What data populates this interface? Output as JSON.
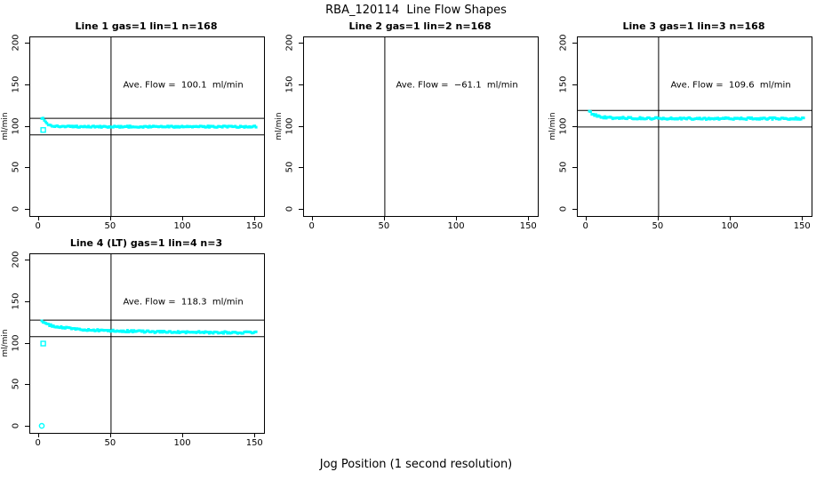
{
  "page": {
    "title": "RBA_120114  Line Flow Shapes",
    "xlabel": "Jog Position (1 second resolution)"
  },
  "colors": {
    "marker": "#00ffff",
    "axis": "#000000",
    "background": "#ffffff"
  },
  "axes": {
    "ylabel": "ml/min",
    "x_ticks": [
      0,
      50,
      100,
      150
    ],
    "y_ticks": [
      0,
      50,
      100,
      150,
      200
    ],
    "xlim": [
      -6,
      156
    ],
    "ylim": [
      -8,
      208
    ],
    "grid": false
  },
  "chart_data": [
    {
      "type": "scatter",
      "title": "Line 1 gas=1 lin=1 n=168",
      "n_points": 168,
      "annotation": "Ave. Flow =  100.1  ml/min",
      "ave_flow_ml_min": 100.1,
      "annotation_xy": [
        100,
        150
      ],
      "vline_x": 50,
      "ref_lines_y": [
        110.1,
        90.1
      ],
      "band": [
        [
          2,
          110
        ],
        [
          3,
          110
        ],
        [
          4,
          108
        ],
        [
          5,
          105
        ],
        [
          7,
          102
        ],
        [
          10,
          100.8
        ],
        [
          15,
          100.3
        ],
        [
          25,
          100
        ],
        [
          50,
          100
        ],
        [
          100,
          100
        ],
        [
          151,
          100
        ]
      ],
      "jitter": 0.9,
      "outliers": [
        {
          "x": 3,
          "y": 96,
          "marker": "square"
        }
      ]
    },
    {
      "type": "scatter",
      "title": "Line 2 gas=1 lin=2 n=168",
      "n_points": 168,
      "annotation": "Ave. Flow =  −61.1  ml/min",
      "ave_flow_ml_min": -61.1,
      "annotation_xy": [
        100,
        150
      ],
      "vline_x": 50,
      "ref_lines_y": [],
      "band": [],
      "jitter": 0,
      "outliers": []
    },
    {
      "type": "scatter",
      "title": "Line 3 gas=1 lin=3 n=168",
      "n_points": 168,
      "annotation": "Ave. Flow =  109.6  ml/min",
      "ave_flow_ml_min": 109.6,
      "annotation_xy": [
        100,
        150
      ],
      "vline_x": 50,
      "ref_lines_y": [
        119.6,
        99.6
      ],
      "band": [
        [
          2,
          118
        ],
        [
          3,
          117
        ],
        [
          5,
          114.5
        ],
        [
          8,
          112.5
        ],
        [
          12,
          111.3
        ],
        [
          20,
          110.5
        ],
        [
          40,
          110
        ],
        [
          80,
          109.8
        ],
        [
          151,
          109.8
        ]
      ],
      "jitter": 1.1,
      "outliers": []
    },
    {
      "type": "scatter",
      "title": "Line 4 (LT) gas=1 lin=4 n=3",
      "n_points": 3,
      "annotation": "Ave. Flow =  118.3  ml/min",
      "ave_flow_ml_min": 118.3,
      "annotation_xy": [
        100,
        150
      ],
      "vline_x": 50,
      "ref_lines_y": [
        128.3,
        108.3
      ],
      "band": [
        [
          2,
          127
        ],
        [
          4,
          125
        ],
        [
          8,
          122
        ],
        [
          15,
          119.5
        ],
        [
          30,
          117
        ],
        [
          50,
          115.5
        ],
        [
          80,
          114.2
        ],
        [
          120,
          113.5
        ],
        [
          151,
          113.2
        ]
      ],
      "jitter": 1.1,
      "outliers": [
        {
          "x": 3,
          "y": 100,
          "marker": "square"
        },
        {
          "x": 2,
          "y": 0.5,
          "marker": "circle"
        }
      ]
    }
  ]
}
